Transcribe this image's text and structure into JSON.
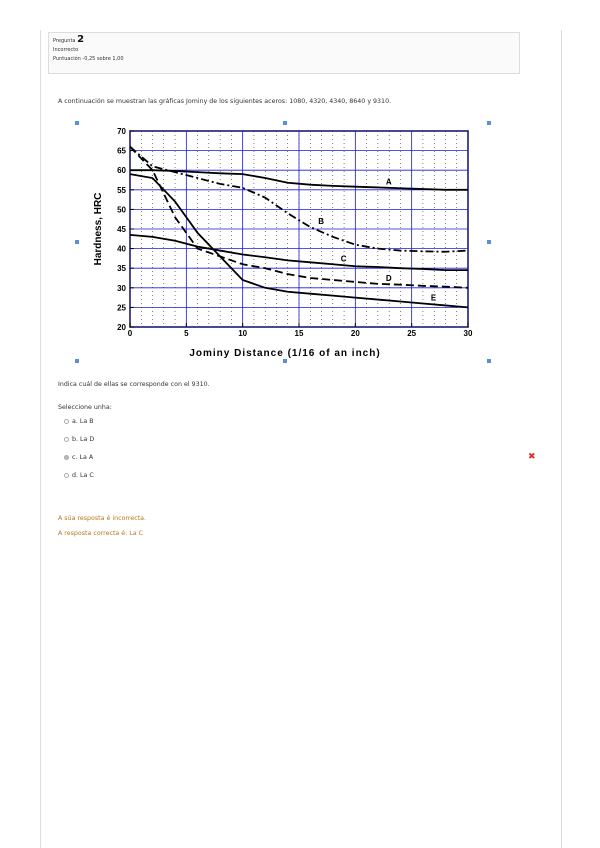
{
  "info": {
    "label": "Pregunta",
    "number": "2",
    "state": "Incorrecto",
    "score": "Puntuación -0,25 sobre 1,00"
  },
  "question": {
    "intro": "A continuación se muestran las gráficas Jominy de los siguientes aceros: 1080, 4320, 4340, 8640 y 9310.",
    "prompt": "Indica cuál de ellas se corresponde con el 9310.",
    "select": "Seleccione unha:",
    "options": [
      "a. La B",
      "b. La D",
      "c. La A",
      "d. La C"
    ],
    "selected": 2
  },
  "feedback": {
    "result": "A súa resposta é incorrecta.",
    "correct": "A resposta correcta é: La C"
  },
  "chart_data": {
    "type": "line",
    "x_label": "Jominy Distance  (1/16 of an inch)",
    "y_label": "Hardness, HRC",
    "x": [
      0,
      2,
      4,
      6,
      8,
      10,
      12,
      14,
      16,
      18,
      20,
      22,
      24,
      26,
      28,
      30
    ],
    "series": [
      {
        "name": "A",
        "color": "#000000",
        "style": "solid",
        "values": [
          60,
          60,
          59.8,
          59.5,
          59.2,
          59,
          58,
          56.8,
          56.3,
          56,
          55.8,
          55.6,
          55.4,
          55.2,
          55,
          55
        ]
      },
      {
        "name": "B",
        "color": "#000000",
        "style": "dashdot",
        "values": [
          66,
          61,
          59.5,
          58,
          56.5,
          55.5,
          53,
          49,
          45.5,
          43,
          41,
          40,
          39.5,
          39.3,
          39.2,
          39.5
        ]
      },
      {
        "name": "C",
        "color": "#000000",
        "style": "solid",
        "values": [
          43.5,
          43,
          42,
          40.5,
          39.5,
          38.5,
          37.8,
          37,
          36.5,
          36,
          35.5,
          35.3,
          35,
          34.8,
          34.5,
          34.5
        ]
      },
      {
        "name": "D",
        "color": "#000000",
        "style": "dash",
        "values": [
          66,
          60,
          48,
          40,
          38,
          36,
          35,
          33.5,
          32.5,
          32,
          31.5,
          31,
          30.8,
          30.5,
          30.3,
          30
        ]
      },
      {
        "name": "E",
        "color": "#000000",
        "style": "solid",
        "values": [
          59,
          58,
          52,
          44,
          38,
          32,
          30,
          29,
          28.5,
          28,
          27.5,
          27,
          26.5,
          26,
          25.5,
          25
        ]
      }
    ],
    "xlim": [
      0,
      30
    ],
    "xticks": [
      0,
      5,
      10,
      15,
      20,
      25,
      30
    ],
    "ylim": [
      20,
      70
    ],
    "yticks": [
      20,
      25,
      30,
      35,
      40,
      45,
      50,
      55,
      60,
      65,
      70
    ],
    "grid": true,
    "grid_color": "#1a1adb"
  }
}
